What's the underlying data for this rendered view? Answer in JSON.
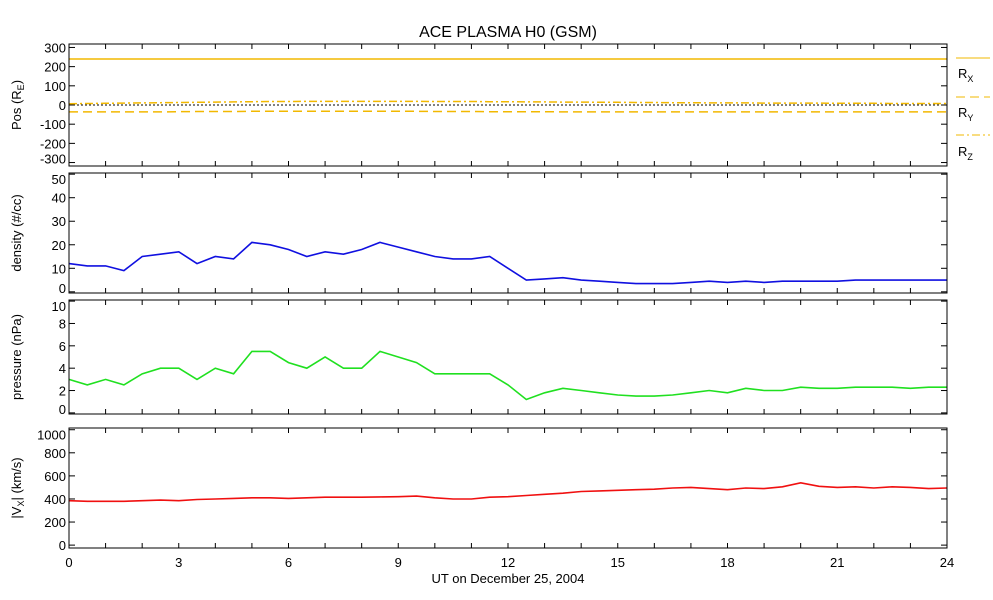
{
  "chart_data": {
    "type": "line",
    "title": "ACE PLASMA H0 (GSM)",
    "xlabel": "UT on December 25, 2004",
    "xlim": [
      0,
      24
    ],
    "xticks": [
      0,
      3,
      6,
      9,
      12,
      15,
      18,
      21,
      24
    ],
    "xtick_labels": [
      "0",
      "3",
      "6",
      "9",
      "12",
      "15",
      "18",
      "21",
      "24"
    ],
    "x": [
      0,
      0.5,
      1,
      1.5,
      2,
      2.5,
      3,
      3.5,
      4,
      4.5,
      5,
      5.5,
      6,
      6.5,
      7,
      7.5,
      8,
      8.5,
      9,
      9.5,
      10,
      10.5,
      11,
      11.5,
      12,
      12.5,
      13,
      13.5,
      14,
      14.5,
      15,
      15.5,
      16,
      16.5,
      17,
      17.5,
      18,
      18.5,
      19,
      19.5,
      20,
      20.5,
      21,
      21.5,
      22,
      22.5,
      23,
      23.5,
      24
    ],
    "panels": [
      {
        "ylabel": {
          "pre": "Pos (R",
          "sub": "E",
          "post": ")"
        },
        "ylim": [
          -318,
          318
        ],
        "yticks": [
          -300,
          -200,
          -100,
          0,
          100,
          200,
          300
        ],
        "ytick_labels": [
          "-300",
          "-200",
          "-100",
          "0",
          "100",
          "200",
          "300"
        ],
        "zero_line": true,
        "series": [
          {
            "name": "R_X",
            "label": {
              "base": "R",
              "sub": "X"
            },
            "color": "#f2b800",
            "dash": "",
            "values": [
              240,
              240,
              240,
              240,
              240,
              240,
              240,
              240,
              240,
              240,
              240,
              240,
              240,
              240,
              240,
              240,
              240,
              240,
              240,
              240,
              240,
              240,
              240,
              240,
              240,
              240,
              240,
              240,
              240,
              240,
              240,
              240,
              240,
              240,
              240,
              240,
              240,
              240,
              240,
              240,
              240,
              240,
              240,
              240,
              240,
              240,
              240,
              240,
              240
            ]
          },
          {
            "name": "R_Y",
            "label": {
              "base": "R",
              "sub": "Y"
            },
            "color": "#f2b800",
            "dash": "9,5",
            "values": [
              -36,
              -36,
              -36,
              -36,
              -36,
              -36,
              -35,
              -34,
              -34,
              -34,
              -33,
              -33,
              -33,
              -33,
              -33,
              -33,
              -33,
              -33,
              -33,
              -33,
              -34,
              -34,
              -34,
              -35,
              -35,
              -35,
              -35,
              -36,
              -36,
              -36,
              -36,
              -36,
              -36,
              -36,
              -36,
              -36,
              -36,
              -36,
              -36,
              -36,
              -36,
              -36,
              -36,
              -36,
              -36,
              -36,
              -36,
              -36,
              -36
            ]
          },
          {
            "name": "R_Z",
            "label": {
              "base": "R",
              "sub": "Z"
            },
            "color": "#f2b800",
            "dash": "8,3,2,3",
            "values": [
              7,
              8,
              9,
              10,
              11,
              12,
              13,
              14,
              15,
              16,
              17,
              18,
              18,
              19,
              19,
              19,
              19,
              19,
              19,
              19,
              18,
              18,
              18,
              17,
              17,
              16,
              16,
              15,
              15,
              14,
              14,
              13,
              13,
              12,
              12,
              11,
              11,
              11,
              10,
              10,
              10,
              10,
              9,
              9,
              9,
              8,
              8,
              8,
              8
            ]
          }
        ]
      },
      {
        "ylabel": {
          "pre": "density (#/cc)",
          "sub": "",
          "post": ""
        },
        "ylim": [
          -0.5,
          50.5
        ],
        "yticks": [
          0,
          10,
          20,
          30,
          40,
          50
        ],
        "ytick_labels": [
          "0",
          "10",
          "20",
          "30",
          "40",
          "50"
        ],
        "series": [
          {
            "name": "density",
            "color": "#1010e0",
            "dash": "",
            "values": [
              12,
              11,
              11,
              9,
              15,
              16,
              17,
              12,
              15,
              14,
              21,
              20,
              18,
              15,
              17,
              16,
              18,
              21,
              19,
              17,
              15,
              14,
              14,
              15,
              10,
              5,
              5.5,
              6,
              5,
              4.5,
              4,
              3.5,
              3.5,
              3.5,
              4,
              4.5,
              4,
              4.5,
              4,
              4.5,
              4.5,
              4.5,
              4.5,
              5,
              5,
              5,
              5,
              5,
              5
            ]
          }
        ]
      },
      {
        "ylabel": {
          "pre": "pressure (nPa)",
          "sub": "",
          "post": ""
        },
        "ylim": [
          -0.1,
          10.1
        ],
        "yticks": [
          0,
          2,
          4,
          6,
          8,
          10
        ],
        "ytick_labels": [
          "0",
          "2",
          "4",
          "6",
          "8",
          "10"
        ],
        "series": [
          {
            "name": "pressure",
            "color": "#20e020",
            "dash": "",
            "values": [
              3,
              2.5,
              3,
              2.5,
              3.5,
              4,
              4,
              3,
              4,
              3.5,
              5.5,
              5.5,
              4.5,
              4,
              5,
              4,
              4,
              5.5,
              5,
              4.5,
              3.5,
              3.5,
              3.5,
              3.5,
              2.5,
              1.2,
              1.8,
              2.2,
              2,
              1.8,
              1.6,
              1.5,
              1.5,
              1.6,
              1.8,
              2,
              1.8,
              2.2,
              2,
              2,
              2.3,
              2.2,
              2.2,
              2.3,
              2.3,
              2.3,
              2.2,
              2.3,
              2.3
            ]
          }
        ]
      },
      {
        "ylabel": {
          "pre": "|V",
          "sub": "X",
          "post": "| (km/s)"
        },
        "ylim": [
          -25,
          1015
        ],
        "yticks": [
          0,
          200,
          400,
          600,
          800,
          1000
        ],
        "ytick_labels": [
          "0",
          "200",
          "400",
          "600",
          "800",
          "1000"
        ],
        "series": [
          {
            "name": "Vx",
            "color": "#f01010",
            "dash": "",
            "values": [
              385,
              380,
              380,
              380,
              385,
              390,
              385,
              395,
              400,
              405,
              410,
              410,
              405,
              410,
              415,
              415,
              415,
              418,
              420,
              425,
              410,
              400,
              400,
              415,
              420,
              430,
              440,
              450,
              465,
              470,
              475,
              480,
              485,
              495,
              500,
              490,
              480,
              495,
              490,
              505,
              540,
              510,
              500,
              505,
              495,
              505,
              500,
              490,
              495
            ]
          }
        ]
      }
    ]
  }
}
